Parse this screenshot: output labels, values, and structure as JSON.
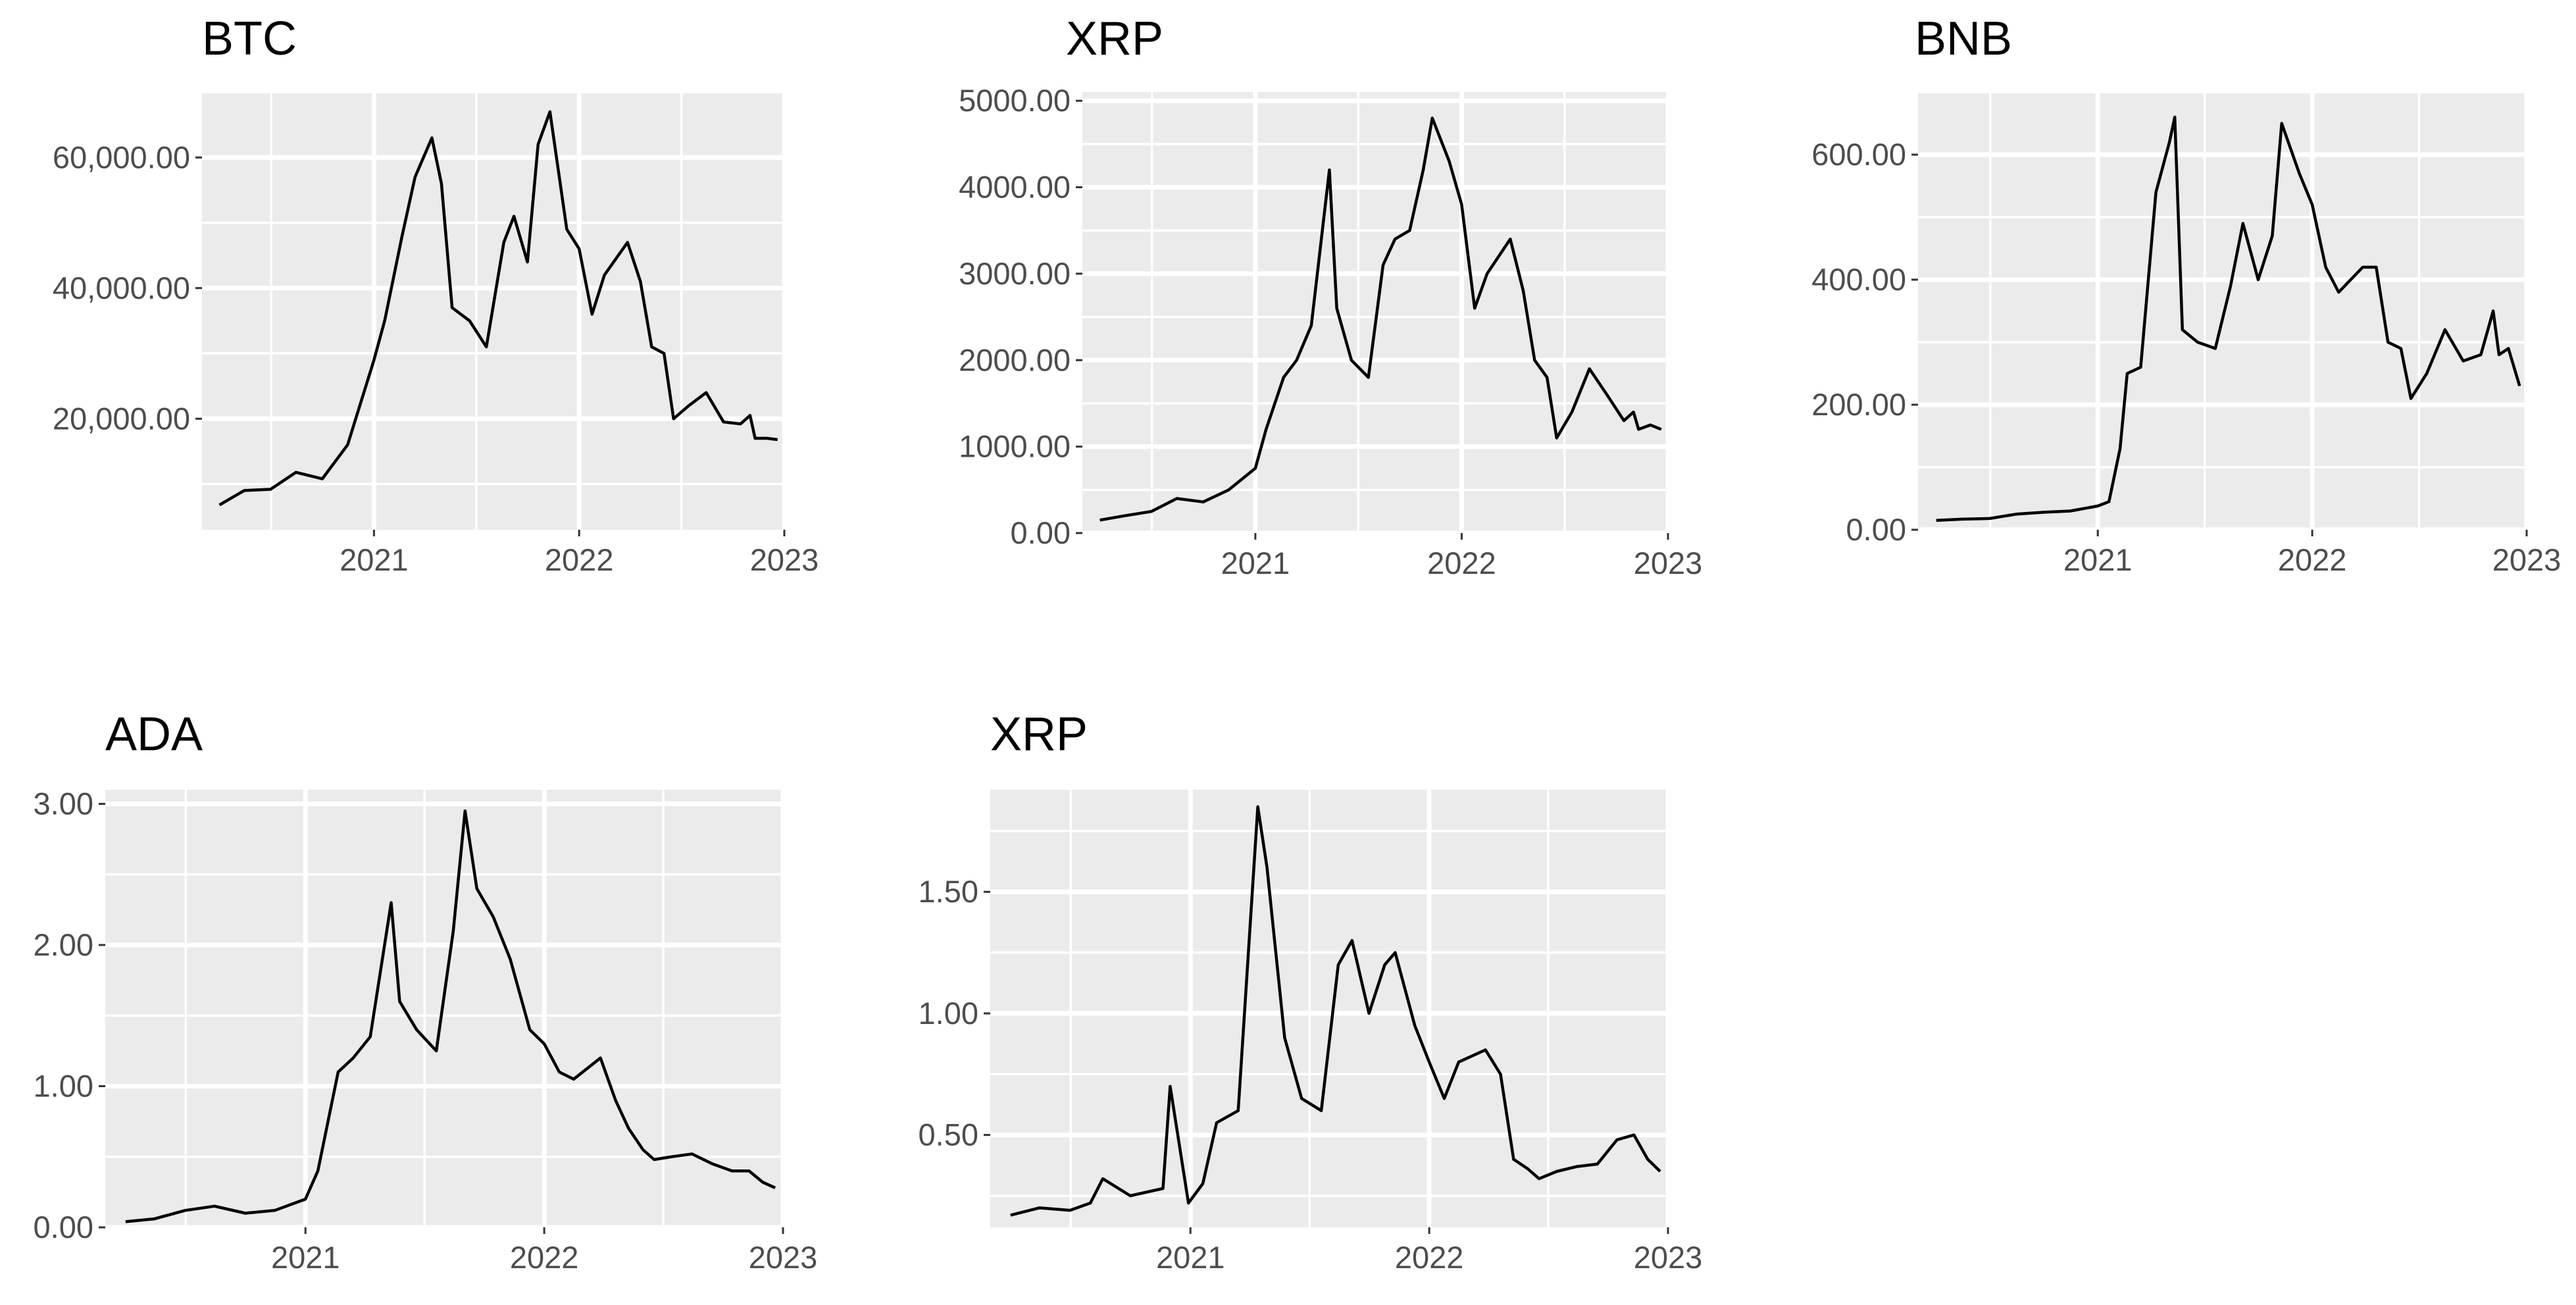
{
  "chart_data": [
    {
      "type": "line",
      "title": "BTC",
      "xlabel": "",
      "ylabel": "",
      "x_axis": "date",
      "xlim": [
        "2020-03-01",
        "2023-01-01"
      ],
      "ylim": [
        3000,
        70000
      ],
      "x_ticks": [
        "2021",
        "2022",
        "2023"
      ],
      "y_ticks": [
        {
          "value": 20000,
          "label": "20,000.00"
        },
        {
          "value": 40000,
          "label": "40,000.00"
        },
        {
          "value": 60000,
          "label": "60,000.00"
        }
      ],
      "grid": true,
      "series": [
        {
          "x": [
            "2020-04-01",
            "2020-05-15",
            "2020-07-01",
            "2020-08-15",
            "2020-10-01",
            "2020-11-15",
            "2021-01-01",
            "2021-01-20",
            "2021-02-20",
            "2021-03-15",
            "2021-04-14",
            "2021-05-01",
            "2021-05-20",
            "2021-06-20",
            "2021-07-20",
            "2021-08-20",
            "2021-09-07",
            "2021-10-01",
            "2021-10-20",
            "2021-11-10",
            "2021-12-10",
            "2022-01-01",
            "2022-01-24",
            "2022-02-15",
            "2022-03-28",
            "2022-04-20",
            "2022-05-10",
            "2022-06-01",
            "2022-06-18",
            "2022-07-15",
            "2022-08-15",
            "2022-09-15",
            "2022-10-15",
            "2022-11-01",
            "2022-11-10",
            "2022-12-01",
            "2022-12-20"
          ],
          "y": [
            6800,
            9000,
            9200,
            11800,
            10800,
            16000,
            29000,
            35000,
            48000,
            57000,
            63000,
            56000,
            37000,
            35000,
            31000,
            47000,
            51000,
            44000,
            62000,
            67000,
            49000,
            46000,
            36000,
            42000,
            47000,
            41000,
            31000,
            30000,
            20000,
            22000,
            24000,
            19500,
            19200,
            20500,
            17000,
            17000,
            16800
          ]
        }
      ]
    },
    {
      "type": "line",
      "title": "XRP",
      "xlabel": "",
      "ylabel": "",
      "x_axis": "date",
      "xlim": [
        "2020-03-01",
        "2023-01-01"
      ],
      "ylim": [
        0,
        5100
      ],
      "x_ticks": [
        "2021",
        "2022",
        "2023"
      ],
      "y_ticks": [
        {
          "value": 0,
          "label": "0.00"
        },
        {
          "value": 1000,
          "label": "1000.00"
        },
        {
          "value": 2000,
          "label": "2000.00"
        },
        {
          "value": 3000,
          "label": "3000.00"
        },
        {
          "value": 4000,
          "label": "4000.00"
        },
        {
          "value": 5000,
          "label": "5000.00"
        }
      ],
      "grid": true,
      "series": [
        {
          "x": [
            "2020-04-01",
            "2020-05-15",
            "2020-07-01",
            "2020-08-15",
            "2020-10-01",
            "2020-11-15",
            "2021-01-01",
            "2021-01-20",
            "2021-02-20",
            "2021-03-15",
            "2021-04-10",
            "2021-05-12",
            "2021-05-25",
            "2021-06-20",
            "2021-07-20",
            "2021-08-15",
            "2021-09-05",
            "2021-10-01",
            "2021-10-25",
            "2021-11-10",
            "2021-12-10",
            "2022-01-01",
            "2022-01-24",
            "2022-02-15",
            "2022-03-28",
            "2022-04-20",
            "2022-05-10",
            "2022-06-01",
            "2022-06-18",
            "2022-07-15",
            "2022-08-15",
            "2022-09-15",
            "2022-10-15",
            "2022-11-01",
            "2022-11-10",
            "2022-12-01",
            "2022-12-20"
          ],
          "y": [
            150,
            200,
            250,
            400,
            360,
            500,
            750,
            1200,
            1800,
            2000,
            2400,
            4200,
            2600,
            2000,
            1800,
            3100,
            3400,
            3500,
            4200,
            4800,
            4300,
            3800,
            2600,
            3000,
            3400,
            2800,
            2000,
            1800,
            1100,
            1400,
            1900,
            1600,
            1300,
            1400,
            1200,
            1250,
            1200
          ]
        }
      ]
    },
    {
      "type": "line",
      "title": "BNB",
      "xlabel": "",
      "ylabel": "",
      "x_axis": "date",
      "xlim": [
        "2020-03-01",
        "2023-01-01"
      ],
      "ylim": [
        0,
        700
      ],
      "x_ticks": [
        "2021",
        "2022",
        "2023"
      ],
      "y_ticks": [
        {
          "value": 0,
          "label": "0.00"
        },
        {
          "value": 200,
          "label": "200.00"
        },
        {
          "value": 400,
          "label": "400.00"
        },
        {
          "value": 600,
          "label": "600.00"
        }
      ],
      "grid": true,
      "series": [
        {
          "x": [
            "2020-04-01",
            "2020-05-15",
            "2020-07-01",
            "2020-08-15",
            "2020-10-01",
            "2020-11-15",
            "2021-01-01",
            "2021-01-20",
            "2021-02-08",
            "2021-02-20",
            "2021-03-15",
            "2021-04-10",
            "2021-05-03",
            "2021-05-12",
            "2021-05-25",
            "2021-06-20",
            "2021-07-20",
            "2021-08-15",
            "2021-09-05",
            "2021-10-01",
            "2021-10-25",
            "2021-11-10",
            "2021-12-10",
            "2022-01-01",
            "2022-01-24",
            "2022-02-15",
            "2022-03-28",
            "2022-04-20",
            "2022-05-10",
            "2022-06-01",
            "2022-06-18",
            "2022-07-15",
            "2022-08-15",
            "2022-09-15",
            "2022-10-15",
            "2022-11-05",
            "2022-11-15",
            "2022-12-01",
            "2022-12-20"
          ],
          "y": [
            15,
            17,
            18,
            25,
            28,
            30,
            38,
            45,
            130,
            250,
            260,
            540,
            620,
            660,
            320,
            300,
            290,
            390,
            490,
            400,
            470,
            650,
            570,
            520,
            420,
            380,
            420,
            420,
            300,
            290,
            210,
            250,
            320,
            270,
            280,
            350,
            280,
            290,
            230
          ]
        }
      ]
    },
    {
      "type": "line",
      "title": "ADA",
      "xlabel": "",
      "ylabel": "",
      "x_axis": "date",
      "xlim": [
        "2020-03-01",
        "2023-01-01"
      ],
      "ylim": [
        0,
        3.1
      ],
      "x_ticks": [
        "2021",
        "2022",
        "2023"
      ],
      "y_ticks": [
        {
          "value": 0,
          "label": "0.00"
        },
        {
          "value": 1,
          "label": "1.00"
        },
        {
          "value": 2,
          "label": "2.00"
        },
        {
          "value": 3,
          "label": "3.00"
        }
      ],
      "grid": true,
      "series": [
        {
          "x": [
            "2020-04-01",
            "2020-05-15",
            "2020-07-01",
            "2020-08-15",
            "2020-10-01",
            "2020-11-15",
            "2021-01-01",
            "2021-01-20",
            "2021-02-20",
            "2021-03-15",
            "2021-04-10",
            "2021-05-12",
            "2021-05-25",
            "2021-06-20",
            "2021-07-20",
            "2021-08-15",
            "2021-09-02",
            "2021-09-20",
            "2021-10-15",
            "2021-11-10",
            "2021-12-10",
            "2022-01-01",
            "2022-01-24",
            "2022-02-15",
            "2022-03-28",
            "2022-04-20",
            "2022-05-10",
            "2022-06-01",
            "2022-06-18",
            "2022-07-15",
            "2022-08-15",
            "2022-09-15",
            "2022-10-15",
            "2022-11-10",
            "2022-12-01",
            "2022-12-20"
          ],
          "y": [
            0.04,
            0.06,
            0.12,
            0.15,
            0.1,
            0.12,
            0.2,
            0.4,
            1.1,
            1.2,
            1.35,
            2.3,
            1.6,
            1.4,
            1.25,
            2.1,
            2.95,
            2.4,
            2.2,
            1.9,
            1.4,
            1.3,
            1.1,
            1.05,
            1.2,
            0.9,
            0.7,
            0.55,
            0.48,
            0.5,
            0.52,
            0.45,
            0.4,
            0.4,
            0.32,
            0.28
          ]
        }
      ]
    },
    {
      "type": "line",
      "title": "XRP",
      "xlabel": "",
      "ylabel": "",
      "x_axis": "date",
      "xlim": [
        "2020-03-01",
        "2023-01-01"
      ],
      "ylim": [
        0.12,
        1.92
      ],
      "x_ticks": [
        "2021",
        "2022",
        "2023"
      ],
      "y_ticks": [
        {
          "value": 0.5,
          "label": "0.50"
        },
        {
          "value": 1.0,
          "label": "1.00"
        },
        {
          "value": 1.5,
          "label": "1.50"
        }
      ],
      "grid": true,
      "series": [
        {
          "x": [
            "2020-04-01",
            "2020-05-15",
            "2020-07-01",
            "2020-08-01",
            "2020-08-20",
            "2020-10-01",
            "2020-11-20",
            "2020-12-01",
            "2020-12-29",
            "2021-01-20",
            "2021-02-10",
            "2021-03-15",
            "2021-04-14",
            "2021-04-28",
            "2021-05-25",
            "2021-06-20",
            "2021-07-20",
            "2021-08-15",
            "2021-09-05",
            "2021-10-01",
            "2021-10-25",
            "2021-11-10",
            "2021-12-10",
            "2022-01-01",
            "2022-01-24",
            "2022-02-15",
            "2022-03-28",
            "2022-04-20",
            "2022-05-10",
            "2022-06-01",
            "2022-06-18",
            "2022-07-15",
            "2022-08-15",
            "2022-09-15",
            "2022-10-15",
            "2022-11-10",
            "2022-12-01",
            "2022-12-20"
          ],
          "y": [
            0.17,
            0.2,
            0.19,
            0.22,
            0.32,
            0.25,
            0.28,
            0.7,
            0.22,
            0.3,
            0.55,
            0.6,
            1.85,
            1.6,
            0.9,
            0.65,
            0.6,
            1.2,
            1.3,
            1.0,
            1.2,
            1.25,
            0.95,
            0.8,
            0.65,
            0.8,
            0.85,
            0.75,
            0.4,
            0.36,
            0.32,
            0.35,
            0.37,
            0.38,
            0.48,
            0.5,
            0.4,
            0.35
          ]
        }
      ]
    }
  ]
}
